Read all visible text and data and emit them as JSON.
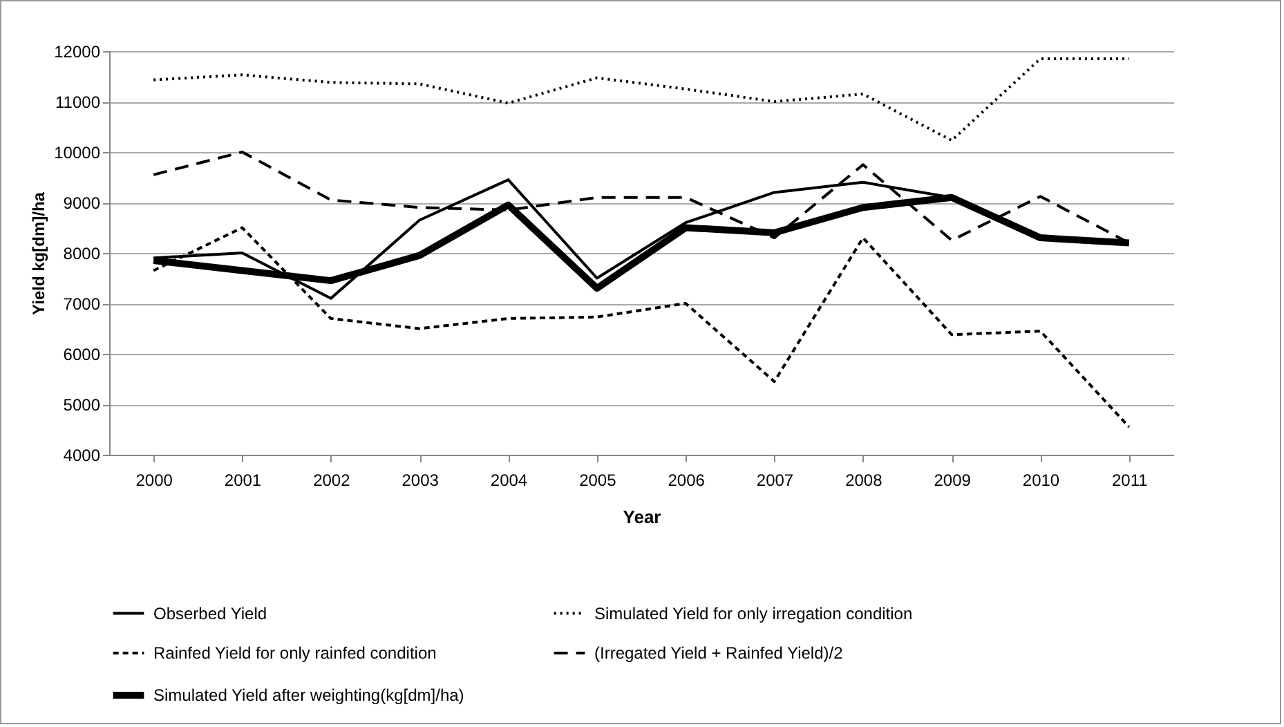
{
  "chart_data": {
    "type": "line",
    "xlabel": "Year",
    "ylabel": "Yield kg[dm]/ha",
    "categories": [
      "2000",
      "2001",
      "2002",
      "2003",
      "2004",
      "2005",
      "2006",
      "2007",
      "2008",
      "2009",
      "2010",
      "2011"
    ],
    "series": [
      {
        "name": "Obserbed Yield",
        "color": "#000000",
        "line_style": "solid",
        "values": [
          7900,
          8000,
          7100,
          8650,
          9450,
          7500,
          8600,
          9200,
          9400,
          9100,
          8300,
          8200
        ]
      },
      {
        "name": "Simulated Yield for only irregation condition",
        "color": "#000000",
        "line_style": "dotted",
        "values": [
          11430,
          11530,
          11380,
          11350,
          10970,
          11470,
          11250,
          11000,
          11150,
          10230,
          11850,
          11850
        ]
      },
      {
        "name": "Rainfed Yield for only rainfed condition",
        "color": "#000000",
        "line_style": "dashed",
        "values": [
          7650,
          8500,
          6700,
          6500,
          6700,
          6730,
          7000,
          5450,
          8300,
          6380,
          6450,
          4550
        ]
      },
      {
        "name": "(Irregated Yield + Rainfed Yield)/2",
        "color": "#000000",
        "line_style": "dashed",
        "values": [
          9550,
          10000,
          9050,
          8900,
          8850,
          9100,
          9100,
          8300,
          9750,
          8250,
          9120,
          8200
        ]
      },
      {
        "name": "Simulated Yield after weighting(kg[dm]/ha)",
        "color": "#000000",
        "line_style": "solid",
        "values": [
          7850,
          7650,
          7450,
          7950,
          8950,
          7300,
          8500,
          8400,
          8900,
          9100,
          8300,
          8200
        ]
      }
    ],
    "ylim": [
      4000,
      12000
    ],
    "yticks": [
      4000,
      5000,
      6000,
      7000,
      8000,
      9000,
      10000,
      11000,
      12000
    ],
    "grid": "y",
    "legend": "bottom"
  }
}
